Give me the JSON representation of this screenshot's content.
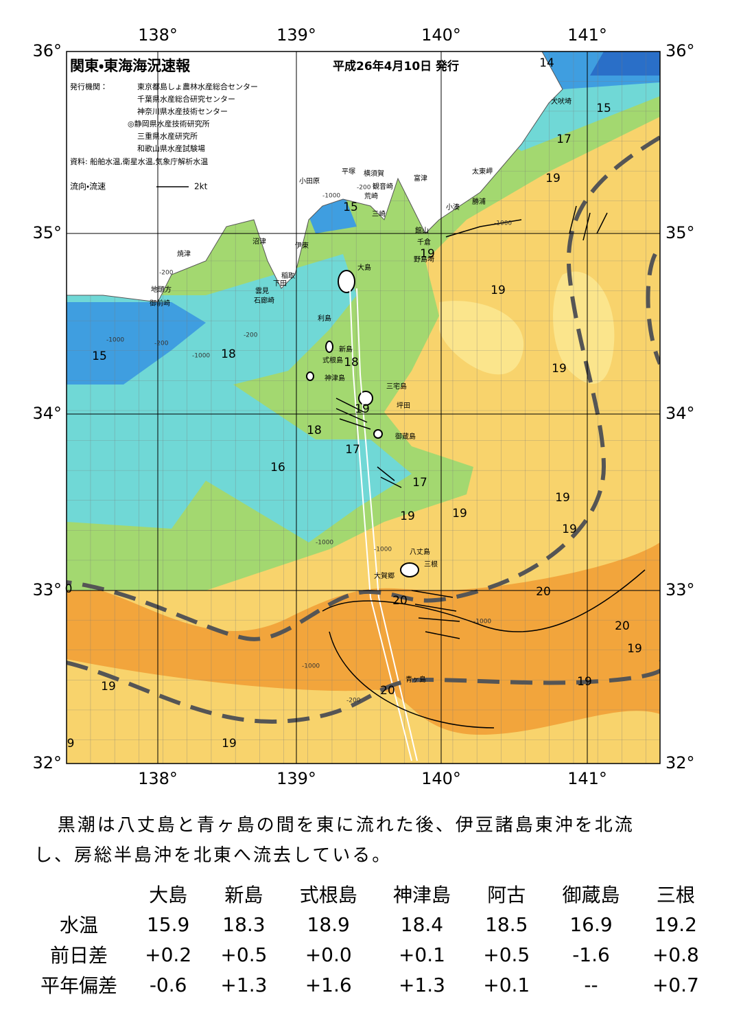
{
  "header": {
    "title": "関東・東海海況速報",
    "date": "平成26年4月10日 発行"
  },
  "issuer": {
    "label": "発行機関：",
    "orgs": [
      "東京都島しょ農林水産総合センター",
      "千葉県水産総合研究センター",
      "神奈川県水産技術センター",
      "◎静岡県水産技術研究所",
      "三重県水産研究所",
      "和歌山県水産試験場"
    ],
    "source": "資料: 船舶水温,衛星水温,気象庁解析水温"
  },
  "legend": {
    "label": "流向・流速",
    "scale": "2kt"
  },
  "axes": {
    "lon": [
      "138°",
      "139°",
      "140°",
      "141°"
    ],
    "lat": [
      "36°",
      "35°",
      "34°",
      "33°",
      "32°"
    ]
  },
  "places": [
    "犬吠埼",
    "太東岬",
    "富津",
    "勝浦",
    "小湊",
    "横須賀",
    "観音崎",
    "平塚",
    "荒崎",
    "三崎",
    "小田原",
    "館山",
    "千倉",
    "野島埼",
    "沼津",
    "伊東",
    "焼津",
    "大島",
    "稲取",
    "下田",
    "雲見",
    "石廊崎",
    "地頭方",
    "御前崎",
    "利島",
    "新島",
    "式根島",
    "神津島",
    "三宅島",
    "坪田",
    "御蔵島",
    "八丈島",
    "三根",
    "大賀郷",
    "青ヶ島"
  ],
  "isotherms": [
    14,
    15,
    17,
    19,
    15,
    19,
    19,
    15,
    18,
    18,
    19,
    19,
    18,
    17,
    16,
    17,
    19,
    19,
    19,
    19,
    20,
    20,
    20,
    19,
    19,
    19,
    20,
    9,
    19,
    0
  ],
  "depths": [
    "-200",
    "-1000",
    "-200",
    "-1000",
    "-200",
    "-1000",
    "-200",
    "-1000",
    "-1000",
    "-1000",
    "-1000",
    "-200",
    "-1000"
  ],
  "summary": "黒潮は八丈島と青ヶ島の間を東に流れた後、伊豆諸島東沖を北流し、房総半島沖を北東へ流去している。",
  "table": {
    "columns": [
      "大島",
      "新島",
      "式根島",
      "神津島",
      "阿古",
      "御蔵島",
      "三根"
    ],
    "rows": [
      {
        "label": "水温",
        "values": [
          "15.9",
          "18.3",
          "18.9",
          "18.4",
          "18.5",
          "16.9",
          "19.2"
        ]
      },
      {
        "label": "前日差",
        "values": [
          "+0.2",
          "+0.5",
          "+0.0",
          "+0.1",
          "+0.5",
          "-1.6",
          "+0.8"
        ]
      },
      {
        "label": "平年偏差",
        "values": [
          "-0.6",
          "+1.3",
          "+1.6",
          "+1.3",
          "+0.1",
          "--",
          "+0.7"
        ]
      }
    ]
  }
}
